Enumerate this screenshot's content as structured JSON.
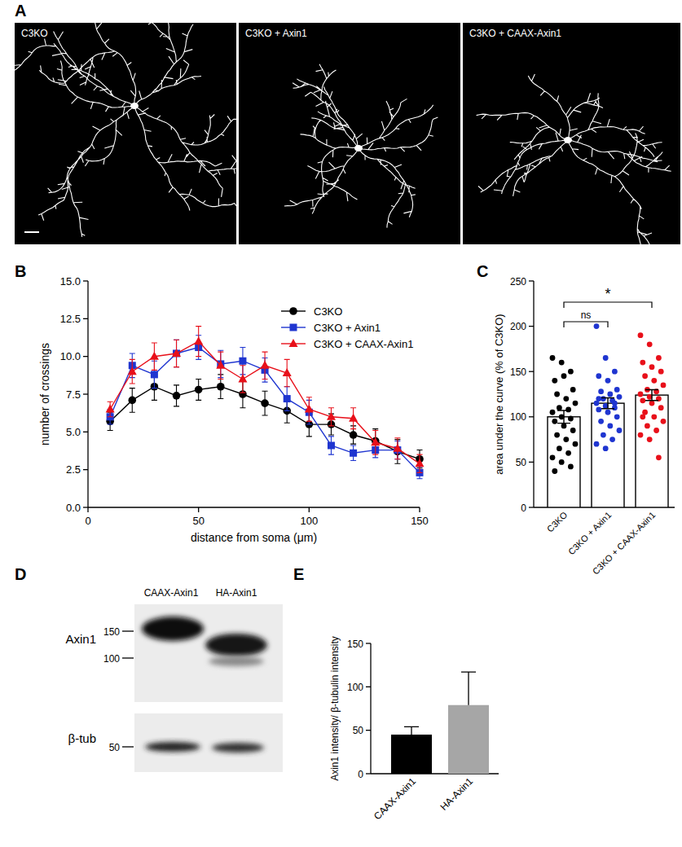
{
  "chart_data": [
    {
      "type": "image",
      "label": "A",
      "panels": [
        "C3KO",
        "C3KO + Axin1",
        "C3KO + CAAX-Axin1"
      ]
    },
    {
      "type": "line",
      "label": "B",
      "x": [
        10,
        20,
        30,
        40,
        50,
        60,
        70,
        80,
        90,
        100,
        110,
        120,
        130,
        140,
        150
      ],
      "xlim": [
        0,
        150
      ],
      "ylim": [
        0,
        15
      ],
      "xticks": [
        0,
        50,
        100,
        150
      ],
      "yticks": [
        {
          "value": 0,
          "label": "0.0"
        },
        {
          "value": 2.5,
          "label": "2.5"
        },
        {
          "value": 5,
          "label": "5.0"
        },
        {
          "value": 7.5,
          "label": "7.5"
        },
        {
          "value": 10,
          "label": "10.0"
        },
        {
          "value": 12.5,
          "label": "12.5"
        },
        {
          "value": 15,
          "label": "15.0"
        }
      ],
      "x_label": "distance from soma (μm)",
      "y_label": "number of crossings",
      "legend": "upper right",
      "series": [
        {
          "name": "C3KO",
          "color": "#000000",
          "marker": "circle",
          "values": [
            5.7,
            7.1,
            8.0,
            7.4,
            7.8,
            8.0,
            7.5,
            6.9,
            6.4,
            5.5,
            5.5,
            4.8,
            4.4,
            3.7,
            3.2
          ],
          "errors": [
            0.6,
            0.8,
            0.9,
            0.7,
            0.7,
            0.8,
            0.9,
            0.8,
            0.8,
            0.8,
            0.7,
            0.6,
            0.8,
            0.8,
            0.6
          ]
        },
        {
          "name": "C3KO + Axin1",
          "color": "#1f35d0",
          "marker": "square",
          "values": [
            6.0,
            9.4,
            8.8,
            10.2,
            10.6,
            9.5,
            9.7,
            9.1,
            7.2,
            6.3,
            4.1,
            3.6,
            3.8,
            3.8,
            2.3
          ],
          "errors": [
            0.5,
            0.8,
            0.9,
            0.9,
            0.8,
            0.9,
            0.9,
            0.8,
            0.8,
            0.8,
            0.6,
            0.5,
            0.5,
            0.6,
            0.4
          ]
        },
        {
          "name": "C3KO + CAAX-Axin1",
          "color": "#e8101a",
          "marker": "triangle",
          "values": [
            6.5,
            9.0,
            10.0,
            10.2,
            11.0,
            9.4,
            8.5,
            9.4,
            8.9,
            6.5,
            6.0,
            5.9,
            4.3,
            3.9,
            2.9
          ],
          "errors": [
            0.5,
            0.8,
            0.9,
            0.9,
            1.0,
            0.9,
            0.9,
            0.9,
            0.9,
            0.8,
            0.6,
            0.7,
            0.8,
            0.7,
            0.6
          ]
        }
      ]
    },
    {
      "type": "bar",
      "label": "C",
      "categories": [
        "C3KO",
        "C3KO + Axin1",
        "C3KO + CAAX-Axin1"
      ],
      "values": [
        100,
        115,
        124
      ],
      "errors": [
        7,
        6,
        6
      ],
      "colors": [
        "#000000",
        "#1f35d0",
        "#e8101a"
      ],
      "points": [
        [
          165,
          160,
          150,
          140,
          145,
          130,
          125,
          120,
          115,
          110,
          108,
          105,
          100,
          98,
          95,
          90,
          85,
          80,
          75,
          70,
          65,
          60,
          55,
          50,
          45,
          40
        ],
        [
          200,
          165,
          150,
          145,
          140,
          130,
          128,
          125,
          122,
          120,
          118,
          115,
          112,
          110,
          108,
          105,
          100,
          95,
          90,
          85,
          80,
          75,
          70,
          65,
          115,
          120
        ],
        [
          190,
          180,
          165,
          160,
          155,
          150,
          145,
          140,
          135,
          130,
          128,
          125,
          122,
          120,
          118,
          115,
          110,
          105,
          100,
          95,
          90,
          85,
          80,
          75,
          55,
          100
        ]
      ],
      "ylim": [
        0,
        250
      ],
      "yticks": [
        0,
        50,
        100,
        150,
        200,
        250
      ],
      "y_label": "area under the curve (% of C3KO)",
      "annotations": [
        {
          "from": 0,
          "to": 1,
          "text": "ns"
        },
        {
          "from": 0,
          "to": 2,
          "text": "*"
        }
      ]
    },
    {
      "type": "blot",
      "label": "D",
      "lanes": [
        "CAAX-Axin1",
        "HA-Axin1"
      ],
      "rows": [
        {
          "name": "Axin1",
          "markers": [
            150,
            100
          ]
        },
        {
          "name": "β-tub",
          "markers": [
            50
          ]
        }
      ]
    },
    {
      "type": "bar",
      "label": "E",
      "categories": [
        "CAAX-Axin1",
        "HA-Axin1"
      ],
      "values": [
        45,
        79
      ],
      "errors": [
        9,
        38
      ],
      "colors": [
        "#000000",
        "#a6a6a6"
      ],
      "ylim": [
        0,
        150
      ],
      "yticks": [
        0,
        50,
        100,
        150
      ],
      "y_label": "Axin1 intensity/ β-tubulin intensity"
    }
  ]
}
